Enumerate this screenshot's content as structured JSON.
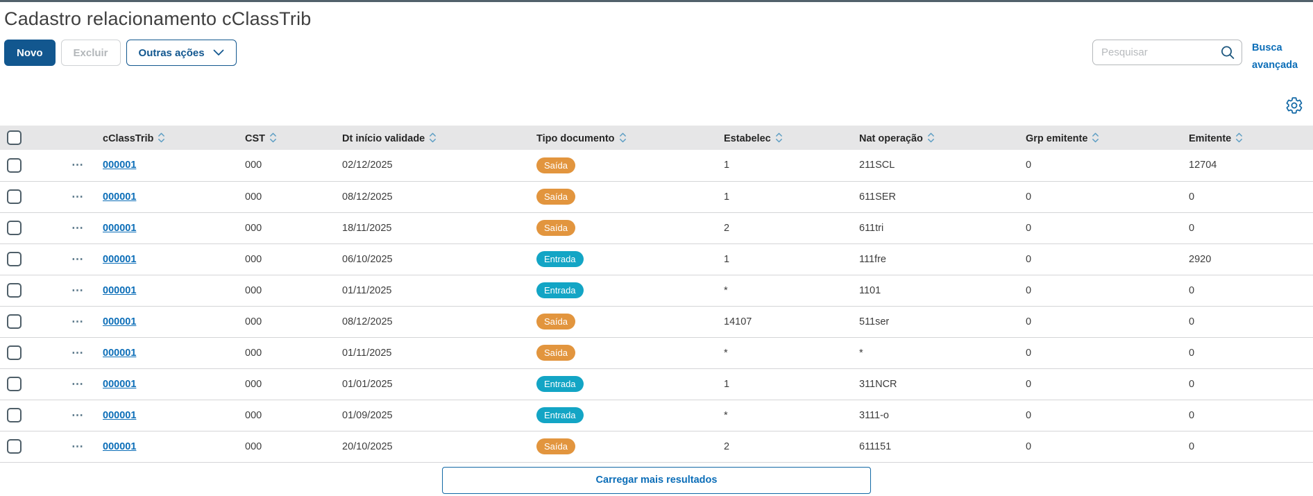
{
  "page": {
    "title": "Cadastro relacionamento cClassTrib"
  },
  "toolbar": {
    "new_label": "Novo",
    "delete_label": "Excluir",
    "other_actions_label": "Outras ações",
    "search_placeholder": "Pesquisar",
    "advanced_search_label": "Busca avançada"
  },
  "icons": {
    "search": "search-icon (magnifier)",
    "gear": "gear-icon (settings cog)",
    "chevron_down": "chevron-down-icon",
    "sort": "sort-updown-icon",
    "ellipsis_glyph": "⋯"
  },
  "colors": {
    "primary": "#12578f",
    "link": "#0c6eb8",
    "accent_bar": "#52616b",
    "header_bg": "#e6e6e7",
    "badge": {
      "Saída": "#e2953e",
      "Entrada": "#13a5c5"
    }
  },
  "table": {
    "columns": [
      {
        "key": "cclasstrib",
        "label": "cClassTrib"
      },
      {
        "key": "cst",
        "label": "CST"
      },
      {
        "key": "dt_inicio_validade",
        "label": "Dt início validade"
      },
      {
        "key": "tipo_documento",
        "label": "Tipo documento"
      },
      {
        "key": "estabelec",
        "label": "Estabelec"
      },
      {
        "key": "nat_operacao",
        "label": "Nat operação"
      },
      {
        "key": "grp_emitente",
        "label": "Grp emitente"
      },
      {
        "key": "emitente",
        "label": "Emitente"
      }
    ],
    "rows": [
      {
        "cclasstrib": "000001",
        "cst": "000",
        "dt_inicio_validade": "02/12/2025",
        "tipo_documento": "Saída",
        "estabelec": "1",
        "nat_operacao": "211SCL",
        "grp_emitente": "0",
        "emitente": "12704"
      },
      {
        "cclasstrib": "000001",
        "cst": "000",
        "dt_inicio_validade": "08/12/2025",
        "tipo_documento": "Saída",
        "estabelec": "1",
        "nat_operacao": "611SER",
        "grp_emitente": "0",
        "emitente": "0"
      },
      {
        "cclasstrib": "000001",
        "cst": "000",
        "dt_inicio_validade": "18/11/2025",
        "tipo_documento": "Saída",
        "estabelec": "2",
        "nat_operacao": "611tri",
        "grp_emitente": "0",
        "emitente": "0"
      },
      {
        "cclasstrib": "000001",
        "cst": "000",
        "dt_inicio_validade": "06/10/2025",
        "tipo_documento": "Entrada",
        "estabelec": "1",
        "nat_operacao": "111fre",
        "grp_emitente": "0",
        "emitente": "2920"
      },
      {
        "cclasstrib": "000001",
        "cst": "000",
        "dt_inicio_validade": "01/11/2025",
        "tipo_documento": "Entrada",
        "estabelec": "*",
        "nat_operacao": "1101",
        "grp_emitente": "0",
        "emitente": "0"
      },
      {
        "cclasstrib": "000001",
        "cst": "000",
        "dt_inicio_validade": "08/12/2025",
        "tipo_documento": "Saída",
        "estabelec": "14107",
        "nat_operacao": "511ser",
        "grp_emitente": "0",
        "emitente": "0"
      },
      {
        "cclasstrib": "000001",
        "cst": "000",
        "dt_inicio_validade": "01/11/2025",
        "tipo_documento": "Saída",
        "estabelec": "*",
        "nat_operacao": "*",
        "grp_emitente": "0",
        "emitente": "0"
      },
      {
        "cclasstrib": "000001",
        "cst": "000",
        "dt_inicio_validade": "01/01/2025",
        "tipo_documento": "Entrada",
        "estabelec": "1",
        "nat_operacao": "311NCR",
        "grp_emitente": "0",
        "emitente": "0"
      },
      {
        "cclasstrib": "000001",
        "cst": "000",
        "dt_inicio_validade": "01/09/2025",
        "tipo_documento": "Entrada",
        "estabelec": "*",
        "nat_operacao": "3111-o",
        "grp_emitente": "0",
        "emitente": "0"
      },
      {
        "cclasstrib": "000001",
        "cst": "000",
        "dt_inicio_validade": "20/10/2025",
        "tipo_documento": "Saída",
        "estabelec": "2",
        "nat_operacao": "611151",
        "grp_emitente": "0",
        "emitente": "0"
      }
    ]
  },
  "footer": {
    "load_more_label": "Carregar mais resultados"
  }
}
